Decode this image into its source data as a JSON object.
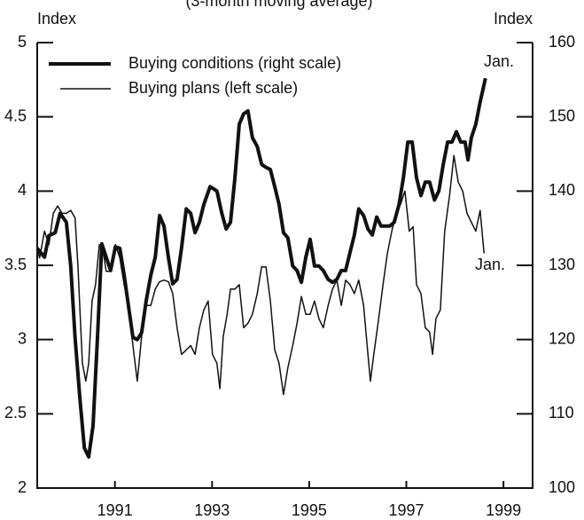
{
  "chart_data": {
    "type": "line",
    "subtitle": "(3-month moving average)",
    "y_label": "Index",
    "y2_label": "Index",
    "annotations": [
      "Jan.",
      "Jan."
    ],
    "xlim": [
      1989.4,
      1999.6
    ],
    "xticks": [
      1991,
      1993,
      1995,
      1997,
      1999
    ],
    "ylim": [
      2,
      5
    ],
    "yticks": [
      2,
      2.5,
      3,
      3.5,
      4,
      4.5,
      5
    ],
    "y2lim": [
      100,
      160
    ],
    "y2ticks": [
      100,
      110,
      120,
      130,
      140,
      150,
      160
    ],
    "legend": "upper left",
    "series": [
      {
        "name": "Buying conditions (right scale)",
        "color": "#111111",
        "width": 4,
        "axis": "y2",
        "x": [
          1989.4,
          1989.55,
          1989.64,
          1989.77,
          1989.87,
          1990.0,
          1990.09,
          1990.18,
          1990.28,
          1990.37,
          1990.46,
          1990.55,
          1990.64,
          1990.73,
          1990.82,
          1990.91,
          1991.01,
          1991.1,
          1991.19,
          1991.28,
          1991.37,
          1991.46,
          1991.55,
          1991.64,
          1991.74,
          1991.83,
          1991.92,
          1992.01,
          1992.1,
          1992.19,
          1992.28,
          1992.37,
          1992.47,
          1992.56,
          1992.65,
          1992.74,
          1992.83,
          1992.96,
          1993.1,
          1993.2,
          1993.29,
          1993.38,
          1993.47,
          1993.56,
          1993.65,
          1993.74,
          1993.83,
          1993.93,
          1994.02,
          1994.11,
          1994.2,
          1994.29,
          1994.38,
          1994.47,
          1994.56,
          1994.66,
          1994.75,
          1994.84,
          1994.93,
          1995.02,
          1995.11,
          1995.2,
          1995.29,
          1995.39,
          1995.48,
          1995.57,
          1995.66,
          1995.75,
          1995.84,
          1995.93,
          1996.02,
          1996.12,
          1996.21,
          1996.3,
          1996.39,
          1996.48,
          1996.57,
          1996.66,
          1996.75,
          1996.85,
          1996.94,
          1997.03,
          1997.12,
          1997.21,
          1997.3,
          1997.39,
          1997.48,
          1997.58,
          1997.67,
          1997.76,
          1997.85,
          1997.94,
          1998.03,
          1998.12,
          1998.21,
          1998.27,
          1998.34,
          1998.43,
          1998.52,
          1998.63
        ],
        "values": [
          132.3,
          131.1,
          134,
          134.4,
          137,
          135.8,
          129.9,
          120.3,
          112,
          105.4,
          104.2,
          108.4,
          120.3,
          132.9,
          131.1,
          129.3,
          132.5,
          132.3,
          128.7,
          124.5,
          120.3,
          120,
          120.9,
          125.1,
          128.7,
          131.1,
          136.7,
          135.3,
          131.1,
          127.5,
          128.1,
          132.3,
          137.6,
          137,
          134.4,
          135.8,
          138.2,
          140.6,
          140,
          137,
          134.9,
          135.8,
          141.8,
          149,
          150.4,
          150.8,
          147.2,
          146,
          143.6,
          143.2,
          142.9,
          140.6,
          138.2,
          134.4,
          133.7,
          129.9,
          129.3,
          127.7,
          131.1,
          133.5,
          129.9,
          129.9,
          129.3,
          128.1,
          127.7,
          128.1,
          129.3,
          129.3,
          131.7,
          134.1,
          137.6,
          136.7,
          134.9,
          134.1,
          136.5,
          135.3,
          135.3,
          135.3,
          135.8,
          138.2,
          141.8,
          146.6,
          146.6,
          141.8,
          139.4,
          141.2,
          141.2,
          138.8,
          140,
          143.6,
          146.6,
          146.6,
          148,
          146.6,
          146.6,
          144.2,
          147.2,
          149,
          152,
          155.2
        ]
      },
      {
        "name": "Buying plans (left scale)",
        "color": "#111111",
        "width": 1.5,
        "axis": "y",
        "x": [
          1989.4,
          1989.45,
          1989.55,
          1989.64,
          1989.73,
          1989.82,
          1989.91,
          1990.0,
          1990.09,
          1990.18,
          1990.24,
          1990.28,
          1990.33,
          1990.4,
          1990.46,
          1990.53,
          1990.6,
          1990.68,
          1990.75,
          1990.82,
          1990.91,
          1991.01,
          1991.1,
          1991.19,
          1991.28,
          1991.37,
          1991.46,
          1991.55,
          1991.64,
          1991.74,
          1991.83,
          1991.92,
          1992.01,
          1992.1,
          1992.19,
          1992.28,
          1992.37,
          1992.47,
          1992.56,
          1992.65,
          1992.74,
          1992.83,
          1992.92,
          1993.01,
          1993.1,
          1993.16,
          1993.23,
          1993.31,
          1993.38,
          1993.47,
          1993.56,
          1993.65,
          1993.74,
          1993.83,
          1993.93,
          1994.02,
          1994.11,
          1994.2,
          1994.29,
          1994.38,
          1994.47,
          1994.56,
          1994.66,
          1994.75,
          1994.84,
          1994.93,
          1995.02,
          1995.11,
          1995.2,
          1995.29,
          1995.39,
          1995.48,
          1995.57,
          1995.66,
          1995.75,
          1995.84,
          1995.93,
          1996.02,
          1996.12,
          1996.21,
          1996.26,
          1996.33,
          1996.43,
          1996.52,
          1996.61,
          1996.7,
          1996.79,
          1996.88,
          1996.97,
          1997.06,
          1997.14,
          1997.21,
          1997.3,
          1997.39,
          1997.48,
          1997.54,
          1997.61,
          1997.7,
          1997.79,
          1997.89,
          1997.98,
          1998.07,
          1998.16,
          1998.25,
          1998.34,
          1998.43,
          1998.52,
          1998.6
        ],
        "values": [
          3.61,
          3.55,
          3.73,
          3.64,
          3.85,
          3.9,
          3.85,
          3.85,
          3.87,
          3.82,
          3.49,
          3.2,
          2.84,
          2.72,
          2.84,
          3.26,
          3.37,
          3.64,
          3.61,
          3.46,
          3.46,
          3.64,
          3.55,
          3.37,
          3.23,
          2.96,
          2.72,
          3.02,
          3.23,
          3.23,
          3.34,
          3.39,
          3.4,
          3.39,
          3.31,
          3.08,
          2.9,
          2.93,
          2.96,
          2.9,
          3.08,
          3.2,
          3.26,
          2.9,
          2.84,
          2.67,
          3.02,
          3.17,
          3.34,
          3.34,
          3.37,
          3.08,
          3.11,
          3.17,
          3.31,
          3.49,
          3.49,
          3.26,
          2.93,
          2.84,
          2.63,
          2.81,
          2.96,
          3.11,
          3.29,
          3.17,
          3.17,
          3.26,
          3.14,
          3.08,
          3.23,
          3.34,
          3.4,
          3.23,
          3.4,
          3.37,
          3.31,
          3.4,
          3.23,
          2.9,
          2.72,
          2.9,
          3.14,
          3.37,
          3.58,
          3.73,
          3.85,
          3.91,
          4.0,
          3.73,
          3.76,
          3.37,
          3.31,
          3.08,
          3.05,
          2.9,
          3.14,
          3.2,
          3.73,
          3.97,
          4.24,
          4.06,
          4.0,
          3.85,
          3.79,
          3.73,
          3.87,
          3.58
        ]
      }
    ]
  }
}
